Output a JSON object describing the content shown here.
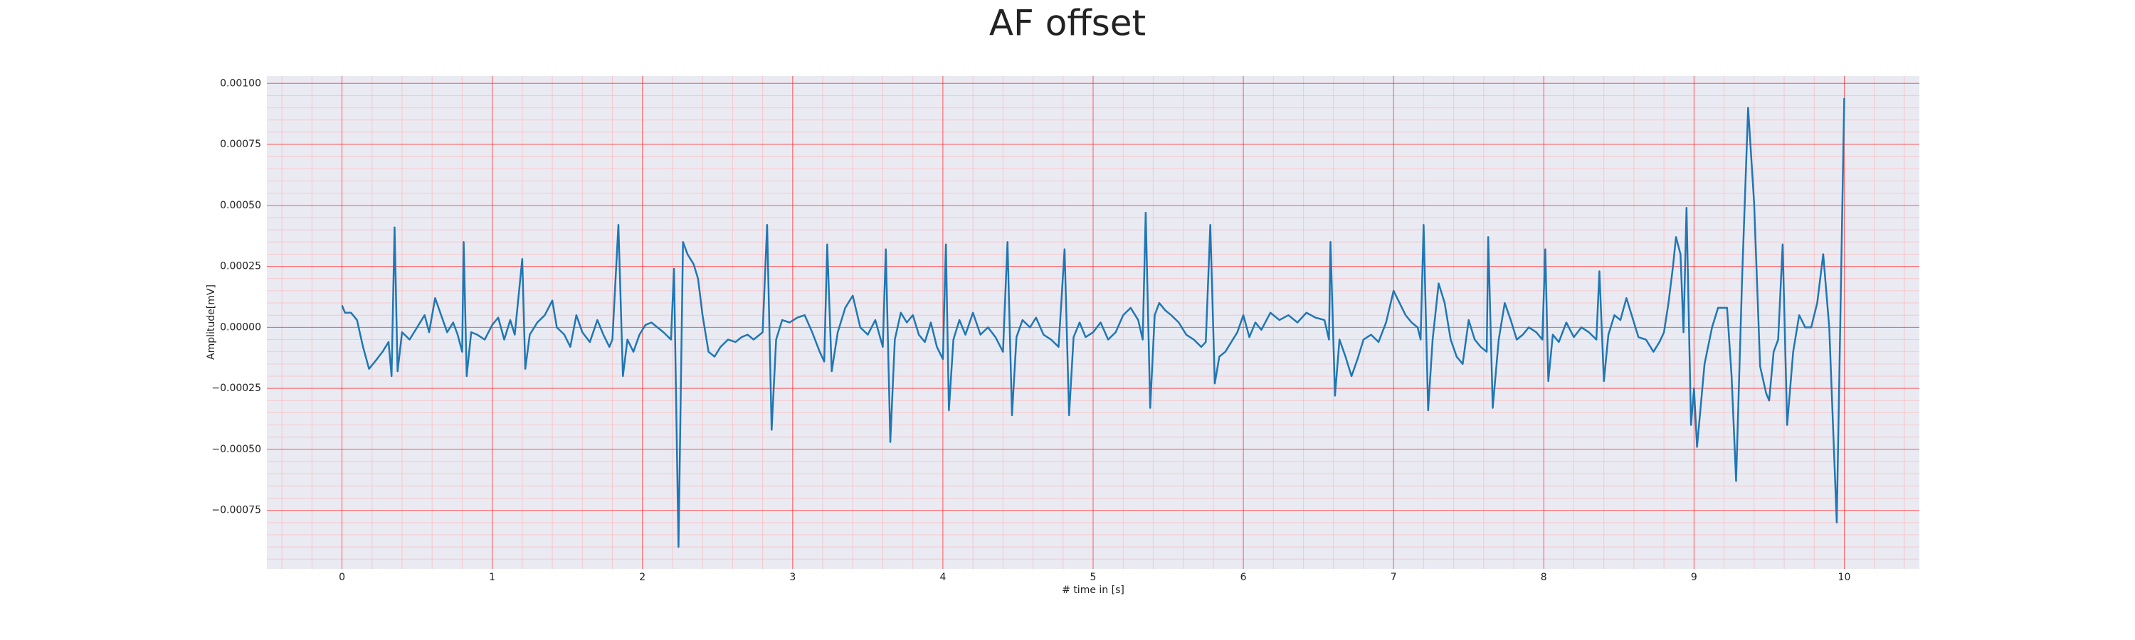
{
  "chart_data": {
    "type": "line",
    "title": "AF offset",
    "x_label": "# time in [s]",
    "y_label": "Amplitude[mV]",
    "x": [
      0.0,
      0.02,
      0.06,
      0.1,
      0.14,
      0.18,
      0.22,
      0.27,
      0.31,
      0.33,
      0.35,
      0.37,
      0.4,
      0.45,
      0.5,
      0.55,
      0.58,
      0.62,
      0.66,
      0.7,
      0.74,
      0.77,
      0.8,
      0.81,
      0.83,
      0.86,
      0.9,
      0.95,
      1.0,
      1.04,
      1.08,
      1.12,
      1.15,
      1.2,
      1.22,
      1.25,
      1.3,
      1.35,
      1.4,
      1.43,
      1.48,
      1.52,
      1.56,
      1.6,
      1.65,
      1.7,
      1.74,
      1.78,
      1.8,
      1.84,
      1.87,
      1.9,
      1.94,
      1.98,
      2.02,
      2.06,
      2.1,
      2.14,
      2.19,
      2.21,
      2.24,
      2.27,
      2.3,
      2.34,
      2.37,
      2.4,
      2.44,
      2.48,
      2.52,
      2.57,
      2.62,
      2.66,
      2.7,
      2.74,
      2.8,
      2.83,
      2.86,
      2.89,
      2.93,
      2.98,
      3.03,
      3.08,
      3.13,
      3.18,
      3.21,
      3.23,
      3.26,
      3.3,
      3.35,
      3.4,
      3.45,
      3.5,
      3.55,
      3.6,
      3.62,
      3.65,
      3.68,
      3.72,
      3.76,
      3.8,
      3.84,
      3.88,
      3.92,
      3.96,
      4.0,
      4.02,
      4.04,
      4.07,
      4.11,
      4.15,
      4.2,
      4.25,
      4.3,
      4.35,
      4.4,
      4.43,
      4.46,
      4.49,
      4.53,
      4.58,
      4.62,
      4.67,
      4.72,
      4.77,
      4.81,
      4.84,
      4.87,
      4.91,
      4.95,
      5.0,
      5.05,
      5.1,
      5.15,
      5.2,
      5.25,
      5.3,
      5.33,
      5.35,
      5.38,
      5.41,
      5.44,
      5.48,
      5.52,
      5.57,
      5.62,
      5.67,
      5.72,
      5.75,
      5.78,
      5.81,
      5.84,
      5.88,
      5.92,
      5.96,
      6.0,
      6.04,
      6.08,
      6.12,
      6.18,
      6.24,
      6.3,
      6.36,
      6.42,
      6.48,
      6.54,
      6.57,
      6.58,
      6.61,
      6.64,
      6.68,
      6.72,
      6.76,
      6.8,
      6.85,
      6.9,
      6.95,
      7.0,
      7.04,
      7.08,
      7.12,
      7.16,
      7.18,
      7.2,
      7.23,
      7.26,
      7.3,
      7.34,
      7.38,
      7.42,
      7.46,
      7.5,
      7.54,
      7.58,
      7.62,
      7.63,
      7.66,
      7.7,
      7.74,
      7.78,
      7.82,
      7.86,
      7.9,
      7.95,
      7.99,
      8.01,
      8.03,
      8.06,
      8.1,
      8.15,
      8.2,
      8.25,
      8.3,
      8.35,
      8.37,
      8.4,
      8.43,
      8.47,
      8.51,
      8.55,
      8.59,
      8.63,
      8.68,
      8.73,
      8.77,
      8.8,
      8.83,
      8.86,
      8.88,
      8.91,
      8.93,
      8.95,
      8.98,
      9.0,
      9.02,
      9.07,
      9.12,
      9.16,
      9.22,
      9.25,
      9.28,
      9.32,
      9.36,
      9.4,
      9.44,
      9.48,
      9.5,
      9.53,
      9.56,
      9.59,
      9.62,
      9.66,
      9.7,
      9.74,
      9.78,
      9.82,
      9.86,
      9.9,
      9.95,
      10.0
    ],
    "series": [
      {
        "name": "AF offset",
        "color": "#1f77b4",
        "values": [
          9e-05,
          6e-05,
          6e-05,
          3e-05,
          -8e-05,
          -0.00017,
          -0.00014,
          -0.0001,
          -6e-05,
          -0.0002,
          0.00041,
          -0.00018,
          -2e-05,
          -5e-05,
          0,
          5e-05,
          -2e-05,
          0.00012,
          5e-05,
          -2e-05,
          2e-05,
          -3e-05,
          -0.0001,
          0.00035,
          -0.0002,
          -2e-05,
          -3e-05,
          -5e-05,
          1e-05,
          4e-05,
          -5e-05,
          3e-05,
          -3e-05,
          0.00028,
          -0.00017,
          -3e-05,
          2e-05,
          5e-05,
          0.00011,
          0,
          -3e-05,
          -8e-05,
          5e-05,
          -2e-05,
          -6e-05,
          3e-05,
          -3e-05,
          -8e-05,
          -5e-05,
          0.00042,
          -0.0002,
          -5e-05,
          -0.0001,
          -3e-05,
          1e-05,
          2e-05,
          0,
          -2e-05,
          -5e-05,
          0.00024,
          -0.0009,
          0.00035,
          0.0003,
          0.00026,
          0.0002,
          5e-05,
          -0.0001,
          -0.00012,
          -8e-05,
          -5e-05,
          -6e-05,
          -4e-05,
          -3e-05,
          -5e-05,
          -2e-05,
          0.00042,
          -0.00042,
          -5e-05,
          3e-05,
          2e-05,
          4e-05,
          5e-05,
          -2e-05,
          -0.0001,
          -0.00014,
          0.00034,
          -0.00018,
          -2e-05,
          8e-05,
          0.00013,
          0,
          -3e-05,
          3e-05,
          -8e-05,
          0.00032,
          -0.00047,
          -5e-05,
          6e-05,
          2e-05,
          5e-05,
          -3e-05,
          -6e-05,
          2e-05,
          -8e-05,
          -0.00013,
          0.00034,
          -0.00034,
          -5e-05,
          3e-05,
          -3e-05,
          6e-05,
          -3e-05,
          0,
          -4e-05,
          -0.0001,
          0.00035,
          -0.00036,
          -4e-05,
          3e-05,
          0,
          4e-05,
          -3e-05,
          -5e-05,
          -8e-05,
          0.00032,
          -0.00036,
          -4e-05,
          2e-05,
          -4e-05,
          -2e-05,
          2e-05,
          -5e-05,
          -2e-05,
          5e-05,
          8e-05,
          3e-05,
          -5e-05,
          0.00047,
          -0.00033,
          5e-05,
          0.0001,
          7e-05,
          5e-05,
          2e-05,
          -3e-05,
          -5e-05,
          -8e-05,
          -6e-05,
          0.00042,
          -0.00023,
          -0.00012,
          -0.0001,
          -6e-05,
          -2e-05,
          5e-05,
          -4e-05,
          2e-05,
          -1e-05,
          6e-05,
          3e-05,
          5e-05,
          2e-05,
          6e-05,
          4e-05,
          3e-05,
          -5e-05,
          0.00035,
          -0.00028,
          -5e-05,
          -0.00012,
          -0.0002,
          -0.00013,
          -5e-05,
          -3e-05,
          -6e-05,
          2e-05,
          0.00015,
          0.0001,
          5e-05,
          2e-05,
          0,
          -5e-05,
          0.00042,
          -0.00034,
          -5e-05,
          0.00018,
          0.0001,
          -5e-05,
          -0.00012,
          -0.00015,
          3e-05,
          -5e-05,
          -8e-05,
          -0.0001,
          0.00037,
          -0.00033,
          -5e-05,
          0.0001,
          3e-05,
          -5e-05,
          -3e-05,
          0,
          -2e-05,
          -5e-05,
          0.00032,
          -0.00022,
          -3e-05,
          -6e-05,
          2e-05,
          -4e-05,
          0,
          -2e-05,
          -5e-05,
          0.00023,
          -0.00022,
          -3e-05,
          5e-05,
          3e-05,
          0.00012,
          4e-05,
          -4e-05,
          -5e-05,
          -0.0001,
          -6e-05,
          -2e-05,
          0.0001,
          0.00025,
          0.00037,
          0.0003,
          -2e-05,
          0.00049,
          -0.0004,
          -0.00025,
          -0.00049,
          -0.00015,
          0,
          8e-05,
          8e-05,
          -0.0002,
          -0.00063,
          0.0002,
          0.0009,
          0.00051,
          -0.00016,
          -0.00027,
          -0.0003,
          -0.0001,
          -5e-05,
          0.00034,
          -0.0004,
          -0.0001,
          5e-05,
          0,
          0,
          0.0001,
          0.0003,
          0,
          -0.0008,
          0.00094
        ]
      }
    ],
    "xlim": [
      -0.5,
      10.5
    ],
    "xticks": [
      0,
      1,
      2,
      3,
      4,
      5,
      6,
      7,
      8,
      9,
      10
    ],
    "ylim": [
      -0.00099,
      0.00103
    ],
    "yticks": [
      {
        "value": -0.00075,
        "label": "−0.00075"
      },
      {
        "value": -0.0005,
        "label": "−0.00050"
      },
      {
        "value": -0.00025,
        "label": "−0.00025"
      },
      {
        "value": 0,
        "label": "0.00000"
      },
      {
        "value": 0.00025,
        "label": "0.00025"
      },
      {
        "value": 0.0005,
        "label": "0.00050"
      },
      {
        "value": 0.00075,
        "label": "0.00075"
      },
      {
        "value": 0.001,
        "label": "0.00100"
      }
    ],
    "grid": true
  }
}
